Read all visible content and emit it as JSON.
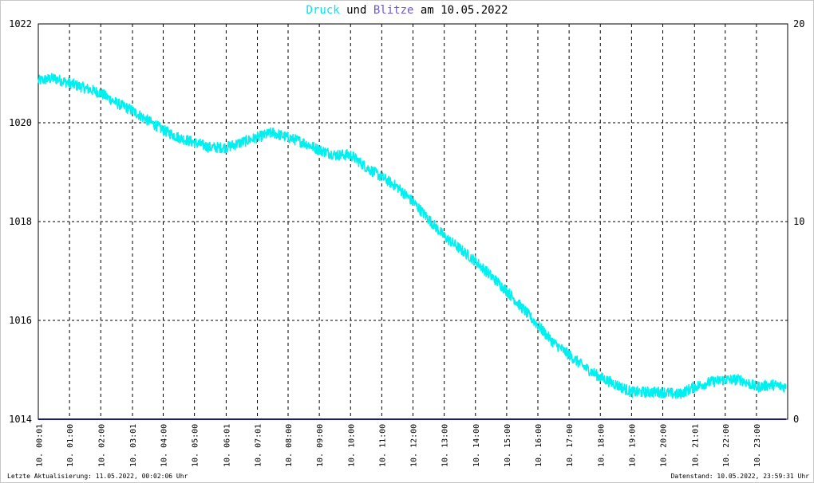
{
  "title": {
    "series1": "Druck",
    "connector": "und",
    "series2": "Blitze",
    "date_prefix": "am",
    "date": "10.05.2022"
  },
  "footer": {
    "last_update": "Letzte Aktualisierung: 11.05.2022, 00:02:06 Uhr",
    "data_status": "Datenstand: 10.05.2022, 23:59:31 Uhr"
  },
  "colors": {
    "pressure": "#00f0f0",
    "lightning": "#1a1a80",
    "grid": "#000000",
    "title_druck": "#00e5ee",
    "title_blitze": "#6a5acd"
  },
  "chart_data": {
    "type": "line",
    "x_tick_labels": [
      "10. 00:01",
      "10. 01:00",
      "10. 02:00",
      "10. 03:01",
      "10. 04:00",
      "10. 05:00",
      "10. 06:01",
      "10. 07:01",
      "10. 08:00",
      "10. 09:00",
      "10. 10:00",
      "10. 11:00",
      "10. 12:00",
      "10. 13:00",
      "10. 14:00",
      "10. 15:00",
      "10. 16:00",
      "10. 17:00",
      "10. 18:00",
      "10. 19:00",
      "10. 20:00",
      "10. 21:01",
      "10. 22:00",
      "10. 23:00"
    ],
    "y_left": {
      "min": 1014,
      "max": 1022,
      "ticks": [
        1014,
        1016,
        1018,
        1020,
        1022
      ]
    },
    "y_right": {
      "min": 0,
      "max": 20,
      "ticks": [
        0,
        10,
        20
      ]
    },
    "grid": true,
    "series": [
      {
        "name": "Druck",
        "axis": "left",
        "x_hours": [
          0,
          0.5,
          1,
          1.5,
          2,
          2.5,
          3,
          3.5,
          4,
          4.5,
          5,
          5.5,
          6,
          6.5,
          7,
          7.5,
          8,
          8.5,
          9,
          9.5,
          10,
          10.5,
          11,
          11.5,
          12,
          12.5,
          13,
          13.5,
          14,
          14.5,
          15,
          15.5,
          16,
          16.5,
          17,
          17.5,
          18,
          18.5,
          19,
          19.5,
          20,
          20.5,
          21,
          21.5,
          22,
          22.5,
          23,
          23.5,
          23.95
        ],
        "values": [
          1020.85,
          1020.9,
          1020.8,
          1020.7,
          1020.6,
          1020.4,
          1020.25,
          1020.05,
          1019.85,
          1019.7,
          1019.6,
          1019.5,
          1019.5,
          1019.6,
          1019.7,
          1019.8,
          1019.7,
          1019.6,
          1019.45,
          1019.35,
          1019.35,
          1019.1,
          1018.9,
          1018.7,
          1018.4,
          1018.05,
          1017.7,
          1017.45,
          1017.2,
          1016.9,
          1016.6,
          1016.25,
          1015.9,
          1015.55,
          1015.3,
          1015.05,
          1014.85,
          1014.7,
          1014.55,
          1014.55,
          1014.55,
          1014.5,
          1014.65,
          1014.75,
          1014.8,
          1014.8,
          1014.65,
          1014.7,
          1014.65
        ]
      },
      {
        "name": "Blitze",
        "axis": "right",
        "x_hours": [
          0,
          23.95
        ],
        "values": [
          0,
          0
        ]
      }
    ]
  }
}
